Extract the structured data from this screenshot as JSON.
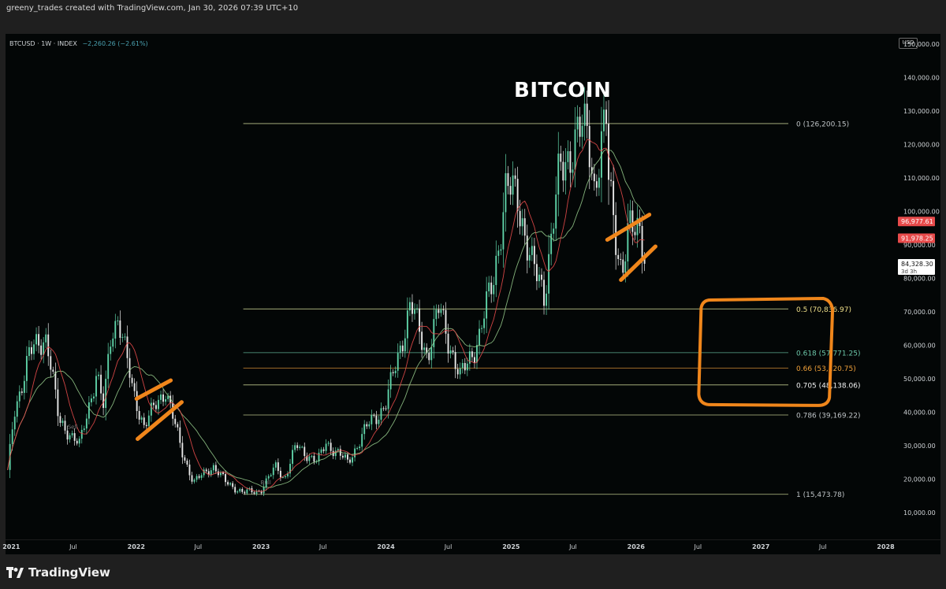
{
  "credit": "greeny_trades created with TradingView.com, Jan 30, 2026 07:39 UTC+10",
  "symbol": {
    "name": "BTCUSD · 1W · INDEX",
    "change": "−2,260.26 (−2.61%)"
  },
  "currency": "USD",
  "brand": "TradingView",
  "colors": {
    "up": "#5fd3a8",
    "down": "#e8e8e8",
    "fast_ma": "#e84b4b",
    "slow_ma": "#9ad08f",
    "annotation": "#f0861b",
    "fib_line": "#d9e3a0",
    "fib_0_66": "#f0a13a",
    "fib_0_618": "#6cc7a9"
  },
  "chart_data": {
    "type": "candlestick",
    "title": "BITCOIN",
    "interval": "1W",
    "x_axis": {
      "range": [
        "2020-12-15",
        "2028-02-01"
      ],
      "ticks": [
        "2021",
        "Jul",
        "2022",
        "Jul",
        "2023",
        "Jul",
        "2024",
        "Jul",
        "2025",
        "Jul",
        "2026",
        "Jul",
        "2027",
        "Jul",
        "2028"
      ]
    },
    "y_axis": {
      "range": [
        2000,
        153000
      ],
      "scale": "linear",
      "position": "right",
      "ticks": [
        "10,000.00",
        "20,000.00",
        "30,000.00",
        "40,000.00",
        "50,000.00",
        "60,000.00",
        "70,000.00",
        "80,000.00",
        "90,000.00",
        "100,000.00",
        "110,000.00",
        "120,000.00",
        "130,000.00",
        "140,000.00",
        "150,000.00"
      ]
    },
    "price_path": [
      [
        "2020-12-21",
        22000
      ],
      [
        "2021-01-10",
        40000
      ],
      [
        "2021-02-21",
        57000
      ],
      [
        "2021-04-14",
        63000
      ],
      [
        "2021-05-20",
        37000
      ],
      [
        "2021-06-20",
        34000
      ],
      [
        "2021-07-20",
        30000
      ],
      [
        "2021-09-07",
        52000
      ],
      [
        "2021-09-28",
        41000
      ],
      [
        "2021-10-20",
        64000
      ],
      [
        "2021-11-10",
        69000
      ],
      [
        "2021-12-20",
        47000
      ],
      [
        "2022-01-24",
        36000
      ],
      [
        "2022-03-28",
        47000
      ],
      [
        "2022-05-12",
        29000
      ],
      [
        "2022-06-18",
        19000
      ],
      [
        "2022-08-14",
        24000
      ],
      [
        "2022-09-20",
        19000
      ],
      [
        "2022-11-09",
        16000
      ],
      [
        "2022-12-30",
        16500
      ],
      [
        "2023-02-15",
        24000
      ],
      [
        "2023-03-10",
        20000
      ],
      [
        "2023-04-14",
        30000
      ],
      [
        "2023-06-15",
        25000
      ],
      [
        "2023-07-10",
        31000
      ],
      [
        "2023-09-11",
        25000
      ],
      [
        "2023-11-15",
        37000
      ],
      [
        "2023-12-31",
        42000
      ],
      [
        "2024-03-13",
        72000
      ],
      [
        "2024-05-01",
        57000
      ],
      [
        "2024-06-05",
        71000
      ],
      [
        "2024-08-05",
        50000
      ],
      [
        "2024-10-01",
        63000
      ],
      [
        "2024-11-10",
        80000
      ],
      [
        "2024-12-17",
        106000
      ],
      [
        "2025-01-20",
        105000
      ],
      [
        "2025-02-28",
        84000
      ],
      [
        "2025-04-08",
        76000
      ],
      [
        "2025-05-22",
        111000
      ],
      [
        "2025-07-14",
        123000
      ],
      [
        "2025-08-14",
        124000
      ],
      [
        "2025-09-01",
        108000
      ],
      [
        "2025-10-06",
        126200
      ],
      [
        "2025-10-12",
        110000
      ],
      [
        "2025-11-21",
        81000
      ],
      [
        "2025-12-10",
        93000
      ],
      [
        "2026-01-14",
        97000
      ],
      [
        "2026-01-30",
        84328
      ]
    ],
    "moving_averages": [
      {
        "label": "fast MA (red)",
        "current": 96977.61
      },
      {
        "label": "slow MA (green)",
        "current": 91978.25
      }
    ],
    "last_price": {
      "value": "84,328.30",
      "countdown": "3d 3h"
    },
    "fib_levels": [
      {
        "ratio": "0",
        "price": 126200.15,
        "label": "0 (126,200.15)"
      },
      {
        "ratio": "0.5",
        "price": 70836.97,
        "label": "0.5 (70,836.97)"
      },
      {
        "ratio": "0.618",
        "price": 57771.25,
        "label": "0.618 (57,771.25)"
      },
      {
        "ratio": "0.66",
        "price": 53120.75,
        "label": "0.66 (53,120.75)"
      },
      {
        "ratio": "0.705",
        "price": 48138.06,
        "label": "0.705 (48,138.06)"
      },
      {
        "ratio": "0.786",
        "price": 39169.22,
        "label": "0.786 (39,169.22)"
      },
      {
        "ratio": "1",
        "price": 15473.78,
        "label": "1 (15,473.78)"
      }
    ],
    "fib_start": "2022-11-10",
    "price_labels": [
      "96,977.61",
      "91,978.25"
    ],
    "annotations": {
      "channels": [
        {
          "lines": [
            [
              [
                "2022-01-02",
                44000
              ],
              [
                "2022-04-12",
                49500
              ]
            ],
            [
              [
                "2022-01-05",
                32000
              ],
              [
                "2022-05-14",
                43000
              ]
            ]
          ]
        },
        {
          "lines": [
            [
              [
                "2025-10-09",
                91500
              ],
              [
                "2026-02-09",
                99000
              ]
            ],
            [
              [
                "2025-11-18",
                79500
              ],
              [
                "2026-02-27",
                89500
              ]
            ]
          ]
        }
      ],
      "highlight_box": {
        "from": "2026-07-15",
        "to": "2027-07-25",
        "top": 73500,
        "bottom": 42000
      }
    },
    "signal_labels": [
      {
        "text": "Sell",
        "date": "2021-06-29",
        "price": 35000
      },
      {
        "text": "Bull",
        "date": "2023-01-15",
        "price": 18500
      }
    ]
  }
}
